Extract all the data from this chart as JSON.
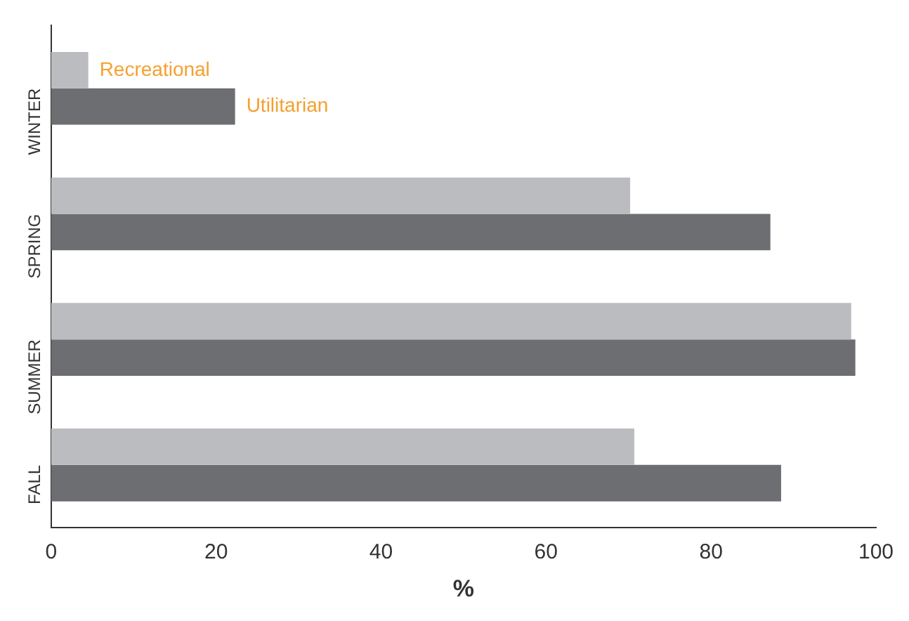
{
  "chart_data": {
    "type": "bar",
    "orientation": "horizontal",
    "xlabel": "%",
    "categories": [
      "WINTER",
      "SPRING",
      "SUMMER",
      "FALL"
    ],
    "series": [
      {
        "name": "Recreational",
        "color": "#bbbcbf",
        "values": [
          4.5,
          70.2,
          97,
          70.7
        ]
      },
      {
        "name": "Utilitarian",
        "color": "#6d6e71",
        "values": [
          22.3,
          87.2,
          97.5,
          88.5
        ]
      }
    ],
    "xlim": [
      0,
      100
    ],
    "xticks": [
      0,
      20,
      40,
      60,
      80,
      100
    ],
    "grid": false,
    "legend": false
  }
}
